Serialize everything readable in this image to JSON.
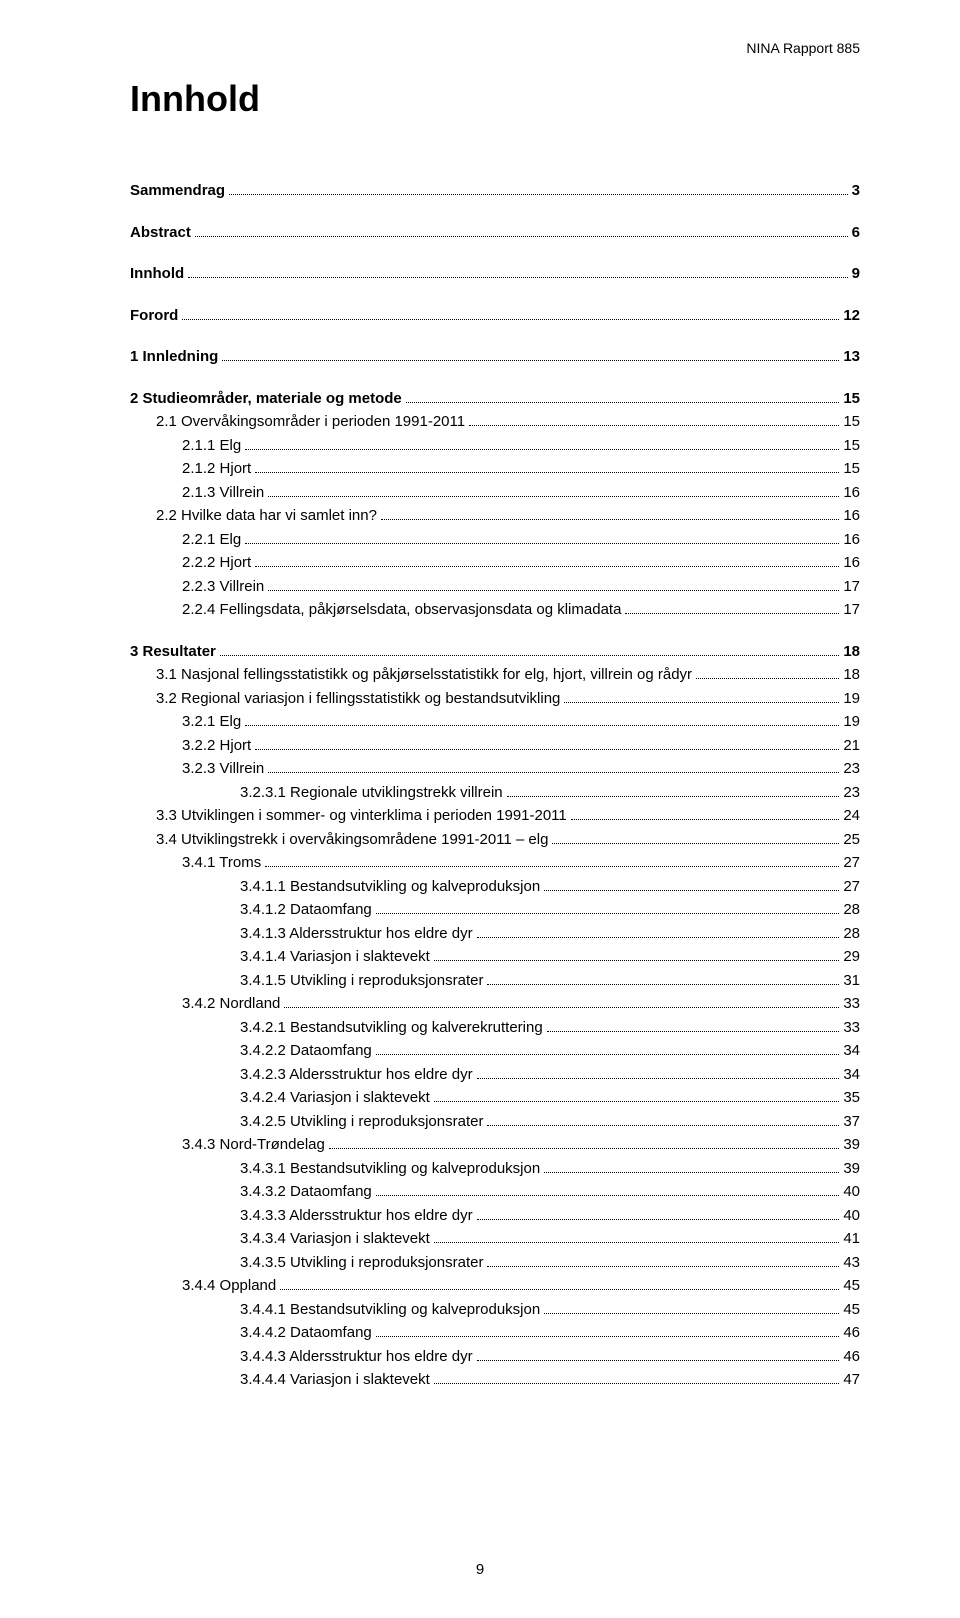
{
  "header": {
    "report_label": "NINA Rapport 885"
  },
  "title": "Innhold",
  "page_number": "9",
  "toc": [
    {
      "type": "row",
      "bold": true,
      "indent": 0,
      "label": "Sammendrag",
      "page": "3"
    },
    {
      "type": "spacer"
    },
    {
      "type": "row",
      "bold": true,
      "indent": 0,
      "label": "Abstract",
      "page": "6"
    },
    {
      "type": "spacer"
    },
    {
      "type": "row",
      "bold": true,
      "indent": 0,
      "label": "Innhold",
      "page": "9"
    },
    {
      "type": "spacer"
    },
    {
      "type": "row",
      "bold": true,
      "indent": 0,
      "label": "Forord",
      "page": "12"
    },
    {
      "type": "spacer"
    },
    {
      "type": "row",
      "bold": true,
      "indent": 0,
      "label": "1  Innledning",
      "page": "13"
    },
    {
      "type": "spacer"
    },
    {
      "type": "row",
      "bold": true,
      "indent": 0,
      "label": "2  Studieområder, materiale og metode",
      "page": "15"
    },
    {
      "type": "row",
      "bold": false,
      "indent": 1,
      "label": "2.1  Overvåkingsområder i perioden 1991-2011",
      "page": "15"
    },
    {
      "type": "row",
      "bold": false,
      "indent": 2,
      "label": "2.1.1  Elg",
      "page": "15"
    },
    {
      "type": "row",
      "bold": false,
      "indent": 2,
      "label": "2.1.2  Hjort",
      "page": "15"
    },
    {
      "type": "row",
      "bold": false,
      "indent": 2,
      "label": "2.1.3  Villrein",
      "page": "16"
    },
    {
      "type": "row",
      "bold": false,
      "indent": 1,
      "label": "2.2  Hvilke data har vi samlet inn?",
      "page": "16"
    },
    {
      "type": "row",
      "bold": false,
      "indent": 2,
      "label": "2.2.1  Elg",
      "page": "16"
    },
    {
      "type": "row",
      "bold": false,
      "indent": 2,
      "label": "2.2.2  Hjort",
      "page": "16"
    },
    {
      "type": "row",
      "bold": false,
      "indent": 2,
      "label": "2.2.3  Villrein",
      "page": "17"
    },
    {
      "type": "row",
      "bold": false,
      "indent": 2,
      "label": "2.2.4  Fellingsdata, påkjørselsdata, observasjonsdata og klimadata",
      "page": "17"
    },
    {
      "type": "spacer"
    },
    {
      "type": "row",
      "bold": true,
      "indent": 0,
      "label": "3  Resultater",
      "page": "18"
    },
    {
      "type": "row",
      "bold": false,
      "indent": 1,
      "label": "3.1  Nasjonal fellingsstatistikk og påkjørselsstatistikk for elg, hjort, villrein og rådyr",
      "page": "18"
    },
    {
      "type": "row",
      "bold": false,
      "indent": 1,
      "label": "3.2  Regional variasjon i fellingsstatistikk og bestandsutvikling",
      "page": "19"
    },
    {
      "type": "row",
      "bold": false,
      "indent": 2,
      "label": "3.2.1  Elg",
      "page": "19"
    },
    {
      "type": "row",
      "bold": false,
      "indent": 2,
      "label": "3.2.2  Hjort",
      "page": "21"
    },
    {
      "type": "row",
      "bold": false,
      "indent": 2,
      "label": "3.2.3  Villrein",
      "page": "23"
    },
    {
      "type": "row",
      "bold": false,
      "indent": 3,
      "label": "3.2.3.1  Regionale utviklingstrekk villrein",
      "page": "23"
    },
    {
      "type": "row",
      "bold": false,
      "indent": 1,
      "label": "3.3  Utviklingen i sommer- og vinterklima i perioden 1991-2011",
      "page": "24"
    },
    {
      "type": "row",
      "bold": false,
      "indent": 1,
      "label": "3.4  Utviklingstrekk i overvåkingsområdene 1991-2011 – elg",
      "page": "25"
    },
    {
      "type": "row",
      "bold": false,
      "indent": 2,
      "label": "3.4.1  Troms",
      "page": "27"
    },
    {
      "type": "row",
      "bold": false,
      "indent": 3,
      "label": "3.4.1.1  Bestandsutvikling og kalveproduksjon",
      "page": "27"
    },
    {
      "type": "row",
      "bold": false,
      "indent": 3,
      "label": "3.4.1.2  Dataomfang",
      "page": "28"
    },
    {
      "type": "row",
      "bold": false,
      "indent": 3,
      "label": "3.4.1.3  Aldersstruktur hos eldre dyr",
      "page": "28"
    },
    {
      "type": "row",
      "bold": false,
      "indent": 3,
      "label": "3.4.1.4  Variasjon i slaktevekt",
      "page": "29"
    },
    {
      "type": "row",
      "bold": false,
      "indent": 3,
      "label": "3.4.1.5  Utvikling i reproduksjonsrater",
      "page": "31"
    },
    {
      "type": "row",
      "bold": false,
      "indent": 2,
      "label": "3.4.2  Nordland",
      "page": "33"
    },
    {
      "type": "row",
      "bold": false,
      "indent": 3,
      "label": "3.4.2.1  Bestandsutvikling og kalverekruttering",
      "page": "33"
    },
    {
      "type": "row",
      "bold": false,
      "indent": 3,
      "label": "3.4.2.2  Dataomfang",
      "page": "34"
    },
    {
      "type": "row",
      "bold": false,
      "indent": 3,
      "label": "3.4.2.3  Aldersstruktur hos eldre dyr",
      "page": "34"
    },
    {
      "type": "row",
      "bold": false,
      "indent": 3,
      "label": "3.4.2.4  Variasjon i slaktevekt",
      "page": "35"
    },
    {
      "type": "row",
      "bold": false,
      "indent": 3,
      "label": "3.4.2.5  Utvikling i reproduksjonsrater",
      "page": "37"
    },
    {
      "type": "row",
      "bold": false,
      "indent": 2,
      "label": "3.4.3  Nord-Trøndelag",
      "page": "39"
    },
    {
      "type": "row",
      "bold": false,
      "indent": 3,
      "label": "3.4.3.1  Bestandsutvikling og kalveproduksjon",
      "page": "39"
    },
    {
      "type": "row",
      "bold": false,
      "indent": 3,
      "label": "3.4.3.2  Dataomfang",
      "page": "40"
    },
    {
      "type": "row",
      "bold": false,
      "indent": 3,
      "label": "3.4.3.3  Aldersstruktur hos eldre dyr",
      "page": "40"
    },
    {
      "type": "row",
      "bold": false,
      "indent": 3,
      "label": "3.4.3.4  Variasjon i slaktevekt",
      "page": "41"
    },
    {
      "type": "row",
      "bold": false,
      "indent": 3,
      "label": "3.4.3.5  Utvikling i reproduksjonsrater",
      "page": "43"
    },
    {
      "type": "row",
      "bold": false,
      "indent": 2,
      "label": "3.4.4  Oppland",
      "page": "45"
    },
    {
      "type": "row",
      "bold": false,
      "indent": 3,
      "label": "3.4.4.1  Bestandsutvikling og kalveproduksjon",
      "page": "45"
    },
    {
      "type": "row",
      "bold": false,
      "indent": 3,
      "label": "3.4.4.2  Dataomfang",
      "page": "46"
    },
    {
      "type": "row",
      "bold": false,
      "indent": 3,
      "label": "3.4.4.3  Aldersstruktur hos eldre dyr",
      "page": "46"
    },
    {
      "type": "row",
      "bold": false,
      "indent": 3,
      "label": "3.4.4.4  Variasjon i slaktevekt",
      "page": "47"
    }
  ]
}
